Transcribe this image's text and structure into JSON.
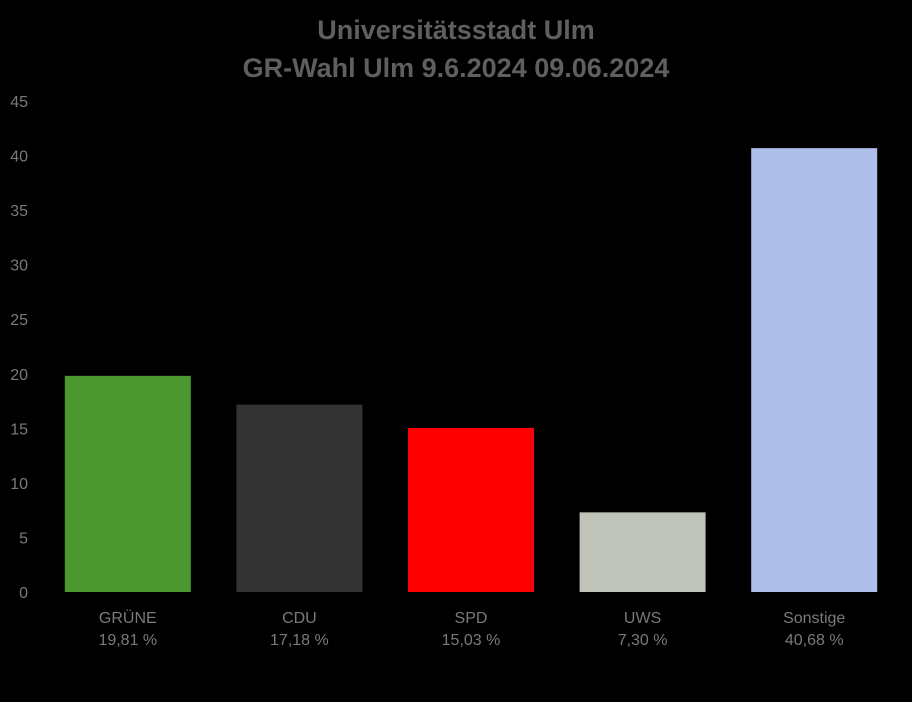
{
  "chart_data": {
    "type": "bar",
    "title": "Universitätsstadt Ulm",
    "subtitle": "GR-Wahl Ulm 9.6.2024 09.06.2024",
    "categories": [
      "GRÜNE",
      "CDU",
      "SPD",
      "UWS",
      "Sonstige"
    ],
    "value_labels": [
      "19,81 %",
      "17,18 %",
      "15,03 %",
      "7,30 %",
      "40,68 %"
    ],
    "values": [
      19.81,
      17.18,
      15.03,
      7.3,
      40.68
    ],
    "colors": [
      "#4a982f",
      "#333333",
      "#ff0000",
      "#bfc3b9",
      "#adbfe6"
    ],
    "ylim": [
      0,
      45
    ],
    "yticks": [
      0,
      5,
      10,
      15,
      20,
      25,
      30,
      35,
      40,
      45
    ],
    "xlabel": "",
    "ylabel": "",
    "grid": false,
    "legend": "none"
  }
}
